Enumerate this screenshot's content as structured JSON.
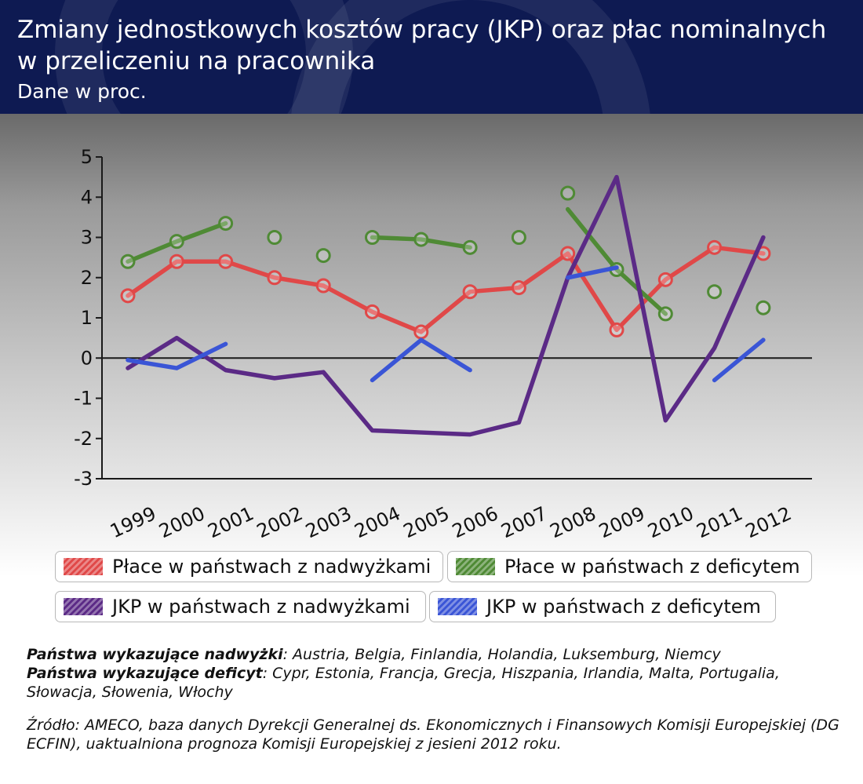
{
  "header": {
    "title_line1": "Zmiany jednostkowych kosztów pracy (JKP) oraz płac nominalnych",
    "title_line2": "w przeliczeniu na pracownika",
    "subtitle": "Dane w proc."
  },
  "colors": {
    "header_bg": "#0e1a52",
    "red": "#e04848",
    "green": "#4f8a35",
    "purple": "#5b2a86",
    "blue": "#3a55d6"
  },
  "chart_data": {
    "type": "line",
    "title": "Zmiany jednostkowych kosztów pracy (JKP) oraz płac nominalnych w przeliczeniu na pracownika",
    "subtitle": "Dane w proc.",
    "xlabel": "",
    "ylabel": "",
    "x": [
      "1999",
      "2000",
      "2001",
      "2002",
      "2003",
      "2004",
      "2005",
      "2006",
      "2007",
      "2008",
      "2009",
      "2010",
      "2011",
      "2012"
    ],
    "ylim": [
      -3,
      5
    ],
    "yticks": [
      "5",
      "4",
      "3",
      "2",
      "1",
      "0",
      "-1",
      "-2",
      "-3"
    ],
    "grid": false,
    "legend_position": "bottom",
    "series": [
      {
        "name": "Płace w państwach z nadwyżkami",
        "color": "#e04848",
        "marker": "circle-open",
        "values": [
          1.55,
          2.4,
          2.4,
          2.0,
          1.8,
          1.15,
          0.65,
          1.65,
          1.75,
          2.6,
          0.7,
          1.95,
          2.75,
          2.6
        ]
      },
      {
        "name": "Płace w państwach z deficytem",
        "color": "#4f8a35",
        "marker": "circle-open",
        "segments": [
          [
            0,
            2
          ],
          [
            5,
            7
          ],
          [
            9,
            11
          ]
        ],
        "line_start": {
          "9": 3.7
        },
        "values": [
          2.4,
          2.9,
          3.35,
          3.0,
          2.55,
          3.0,
          2.95,
          2.75,
          3.0,
          4.1,
          2.2,
          1.1,
          1.65,
          1.25
        ]
      },
      {
        "name": "JKP w państwach z nadwyżkami",
        "color": "#5b2a86",
        "marker": "none",
        "values": [
          -0.25,
          0.5,
          -0.3,
          -0.5,
          -0.35,
          -1.8,
          -1.85,
          -1.9,
          -1.6,
          2.0,
          4.5,
          -1.55,
          0.25,
          3.0
        ]
      },
      {
        "name": "JKP w państwach z deficytem",
        "color": "#3a55d6",
        "marker": "none",
        "segments": [
          [
            0,
            2
          ],
          [
            5,
            7
          ],
          [
            9,
            10
          ],
          [
            12,
            13
          ]
        ],
        "values": [
          -0.05,
          -0.25,
          0.35,
          null,
          null,
          -0.55,
          0.45,
          -0.3,
          null,
          2.0,
          2.25,
          null,
          -0.55,
          0.45
        ]
      }
    ]
  },
  "legend": {
    "items": [
      {
        "label": "Płace w państwach z nadwyżkami",
        "color": "#e04848"
      },
      {
        "label": "Płace w państwach z deficytem",
        "color": "#4f8a35"
      },
      {
        "label": "JKP w państwach z nadwyżkami",
        "color": "#5b2a86"
      },
      {
        "label": "JKP w państwach z deficytem",
        "color": "#3a55d6"
      }
    ]
  },
  "notes": {
    "surplus_label": "Państwa wykazujące nadwyżki",
    "surplus_countries": ": Austria, Belgia, Finlandia, Holandia, Luksemburg, Niemcy",
    "deficit_label": "Państwa wykazujące deficyt",
    "deficit_countries": ": Cypr, Estonia, Francja, Grecja, Hiszpania, Irlandia, Malta, Portugalia, Słowacja, Słowenia, Włochy",
    "source": "Źródło: AMECO, baza danych Dyrekcji Generalnej ds. Ekonomicznych i Finansowych Komisji Europejskiej (DG ECFIN), uaktualniona prognoza Komisji Europejskiej z jesieni 2012 roku."
  }
}
